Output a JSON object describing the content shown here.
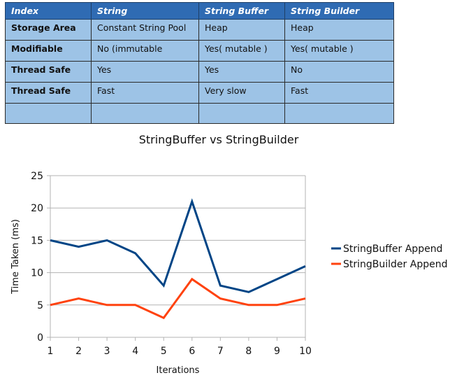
{
  "table": {
    "headers": [
      "Index",
      "String",
      "String Buffer",
      "String Builder"
    ],
    "rows": [
      [
        "Storage Area",
        "Constant String Pool",
        "Heap",
        "Heap"
      ],
      [
        "Modifiable",
        "No (immutable",
        "Yes( mutable )",
        "Yes( mutable )"
      ],
      [
        "Thread Safe",
        "Yes",
        "Yes",
        "No"
      ],
      [
        "Thread Safe",
        "Fast",
        "Very slow",
        "Fast"
      ],
      [
        "",
        "",
        "",
        ""
      ]
    ]
  },
  "colors": {
    "header_bg": "#2f6bb3",
    "cell_bg": "#9dc3e6",
    "series_1": "#004586",
    "series_2": "#ff420e"
  },
  "chart_data": {
    "type": "line",
    "title": "StringBuffer vs StringBuilder",
    "xlabel": "Iterations",
    "ylabel": "Time Taken (ms)",
    "x": [
      1,
      2,
      3,
      4,
      5,
      6,
      7,
      8,
      9,
      10
    ],
    "ylim": [
      0,
      25
    ],
    "yticks": [
      0,
      5,
      10,
      15,
      20,
      25
    ],
    "grid": "horizontal",
    "legend": "right",
    "series": [
      {
        "name": "StringBuffer Append",
        "values": [
          15,
          14,
          15,
          13,
          8,
          21,
          8,
          7,
          9,
          11
        ]
      },
      {
        "name": "StringBuilder Append",
        "values": [
          5,
          6,
          5,
          5,
          3,
          9,
          6,
          5,
          5,
          6
        ]
      }
    ]
  }
}
